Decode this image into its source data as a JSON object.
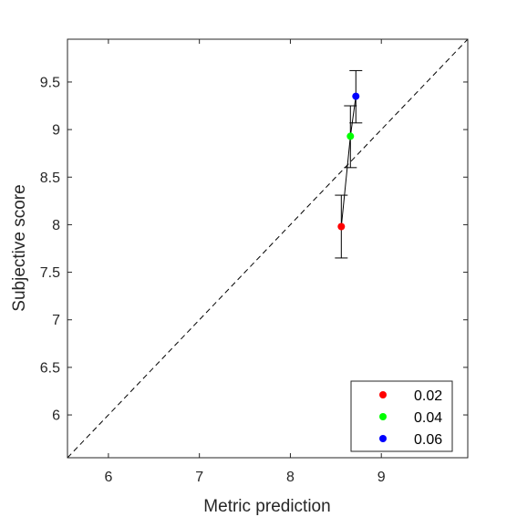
{
  "chart_data": {
    "type": "scatter",
    "xlabel": "Metric prediction",
    "ylabel": "Subjective score",
    "xlim": [
      5.55,
      9.95
    ],
    "ylim": [
      5.55,
      9.95
    ],
    "x_ticks": [
      6,
      7,
      8,
      9
    ],
    "y_ticks": [
      6,
      6.5,
      7,
      7.5,
      8,
      8.5,
      9,
      9.5
    ],
    "x_tick_labels": [
      "6",
      "7",
      "8",
      "9"
    ],
    "y_tick_labels": [
      "6",
      "6.5",
      "7",
      "7.5",
      "8",
      "8.5",
      "9",
      "9.5"
    ],
    "grid": false,
    "reference_line": "y = x (dashed)",
    "connecting_line": true,
    "legend_position": "bottom-right",
    "series": [
      {
        "name": "0.02",
        "color": "#ff0000",
        "x": 8.56,
        "y": 7.98,
        "err_low": 7.65,
        "err_high": 8.31
      },
      {
        "name": "0.04",
        "color": "#00ff00",
        "x": 8.66,
        "y": 8.93,
        "err_low": 8.6,
        "err_high": 9.25
      },
      {
        "name": "0.06",
        "color": "#0000ff",
        "x": 8.72,
        "y": 9.35,
        "err_low": 9.07,
        "err_high": 9.62
      }
    ]
  }
}
